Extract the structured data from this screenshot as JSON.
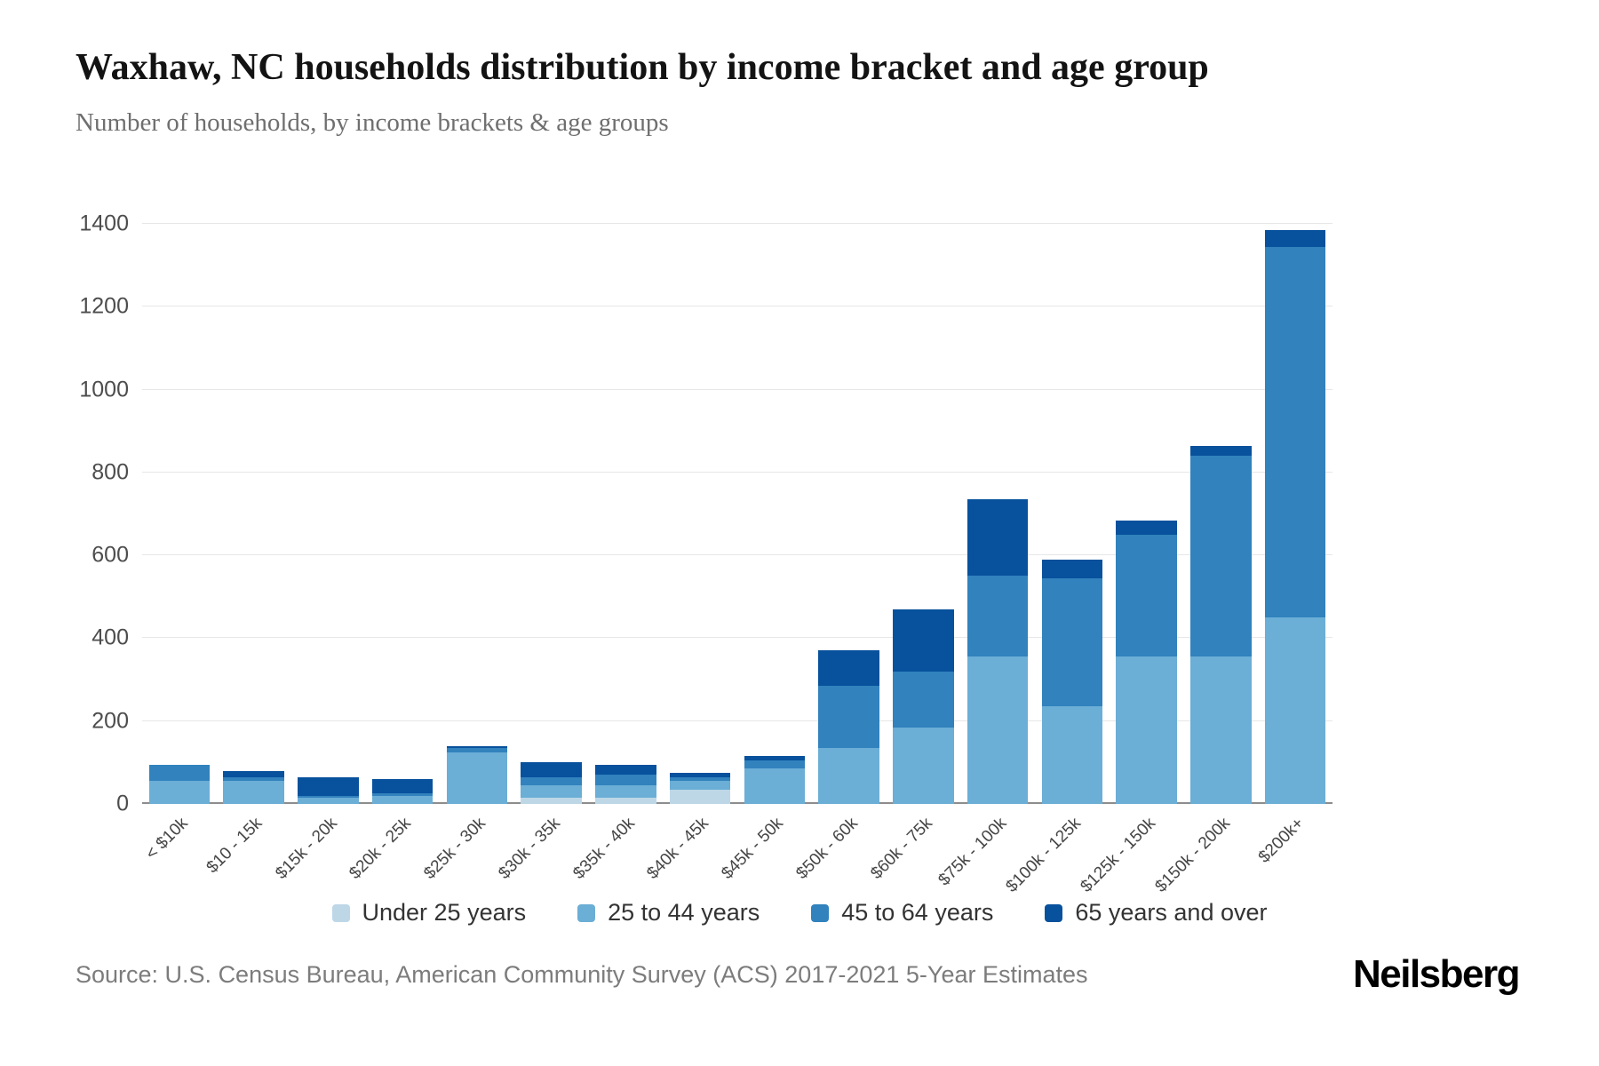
{
  "chart": {
    "title": "Waxhaw, NC households distribution by income bracket and age group",
    "subtitle": "Number of households, by income brackets & age groups",
    "source": "Source: U.S. Census Bureau, American Community Survey (ACS) 2017-2021 5-Year Estimates",
    "brand": "Neilsberg"
  },
  "chart_data": {
    "type": "bar",
    "stacked": true,
    "title": "Waxhaw, NC households distribution by income bracket and age group",
    "xlabel": "",
    "ylabel": "Number of households",
    "ylim": [
      0,
      1400
    ],
    "yticks": [
      0,
      200,
      400,
      600,
      800,
      1000,
      1200,
      1400
    ],
    "grid": true,
    "legend_position": "bottom",
    "categories": [
      "< $10k",
      "$10 - 15k",
      "$15k - 20k",
      "$20k - 25k",
      "$25k - 30k",
      "$30k - 35k",
      "$35k - 40k",
      "$40k - 45k",
      "$45k - 50k",
      "$50k - 60k",
      "$60k - 75k",
      "$75k - 100k",
      "$100k - 125k",
      "$125k - 150k",
      "$150k - 200k",
      "$200k+"
    ],
    "series": [
      {
        "name": "Under 25 years",
        "color": "#bdd7e7",
        "values": [
          0,
          0,
          0,
          0,
          0,
          15,
          15,
          35,
          0,
          0,
          0,
          0,
          0,
          0,
          0,
          0
        ]
      },
      {
        "name": "25 to 44 years",
        "color": "#6baed6",
        "values": [
          55,
          55,
          15,
          20,
          125,
          30,
          30,
          20,
          85,
          135,
          185,
          355,
          235,
          355,
          355,
          450
        ]
      },
      {
        "name": "45 to 64 years",
        "color": "#3182bd",
        "values": [
          40,
          10,
          5,
          5,
          10,
          20,
          25,
          10,
          20,
          150,
          135,
          195,
          310,
          295,
          485,
          895
        ]
      },
      {
        "name": "65 years and over",
        "color": "#08519c",
        "values": [
          0,
          15,
          45,
          35,
          5,
          35,
          25,
          10,
          10,
          85,
          150,
          185,
          45,
          35,
          25,
          40
        ]
      }
    ]
  }
}
